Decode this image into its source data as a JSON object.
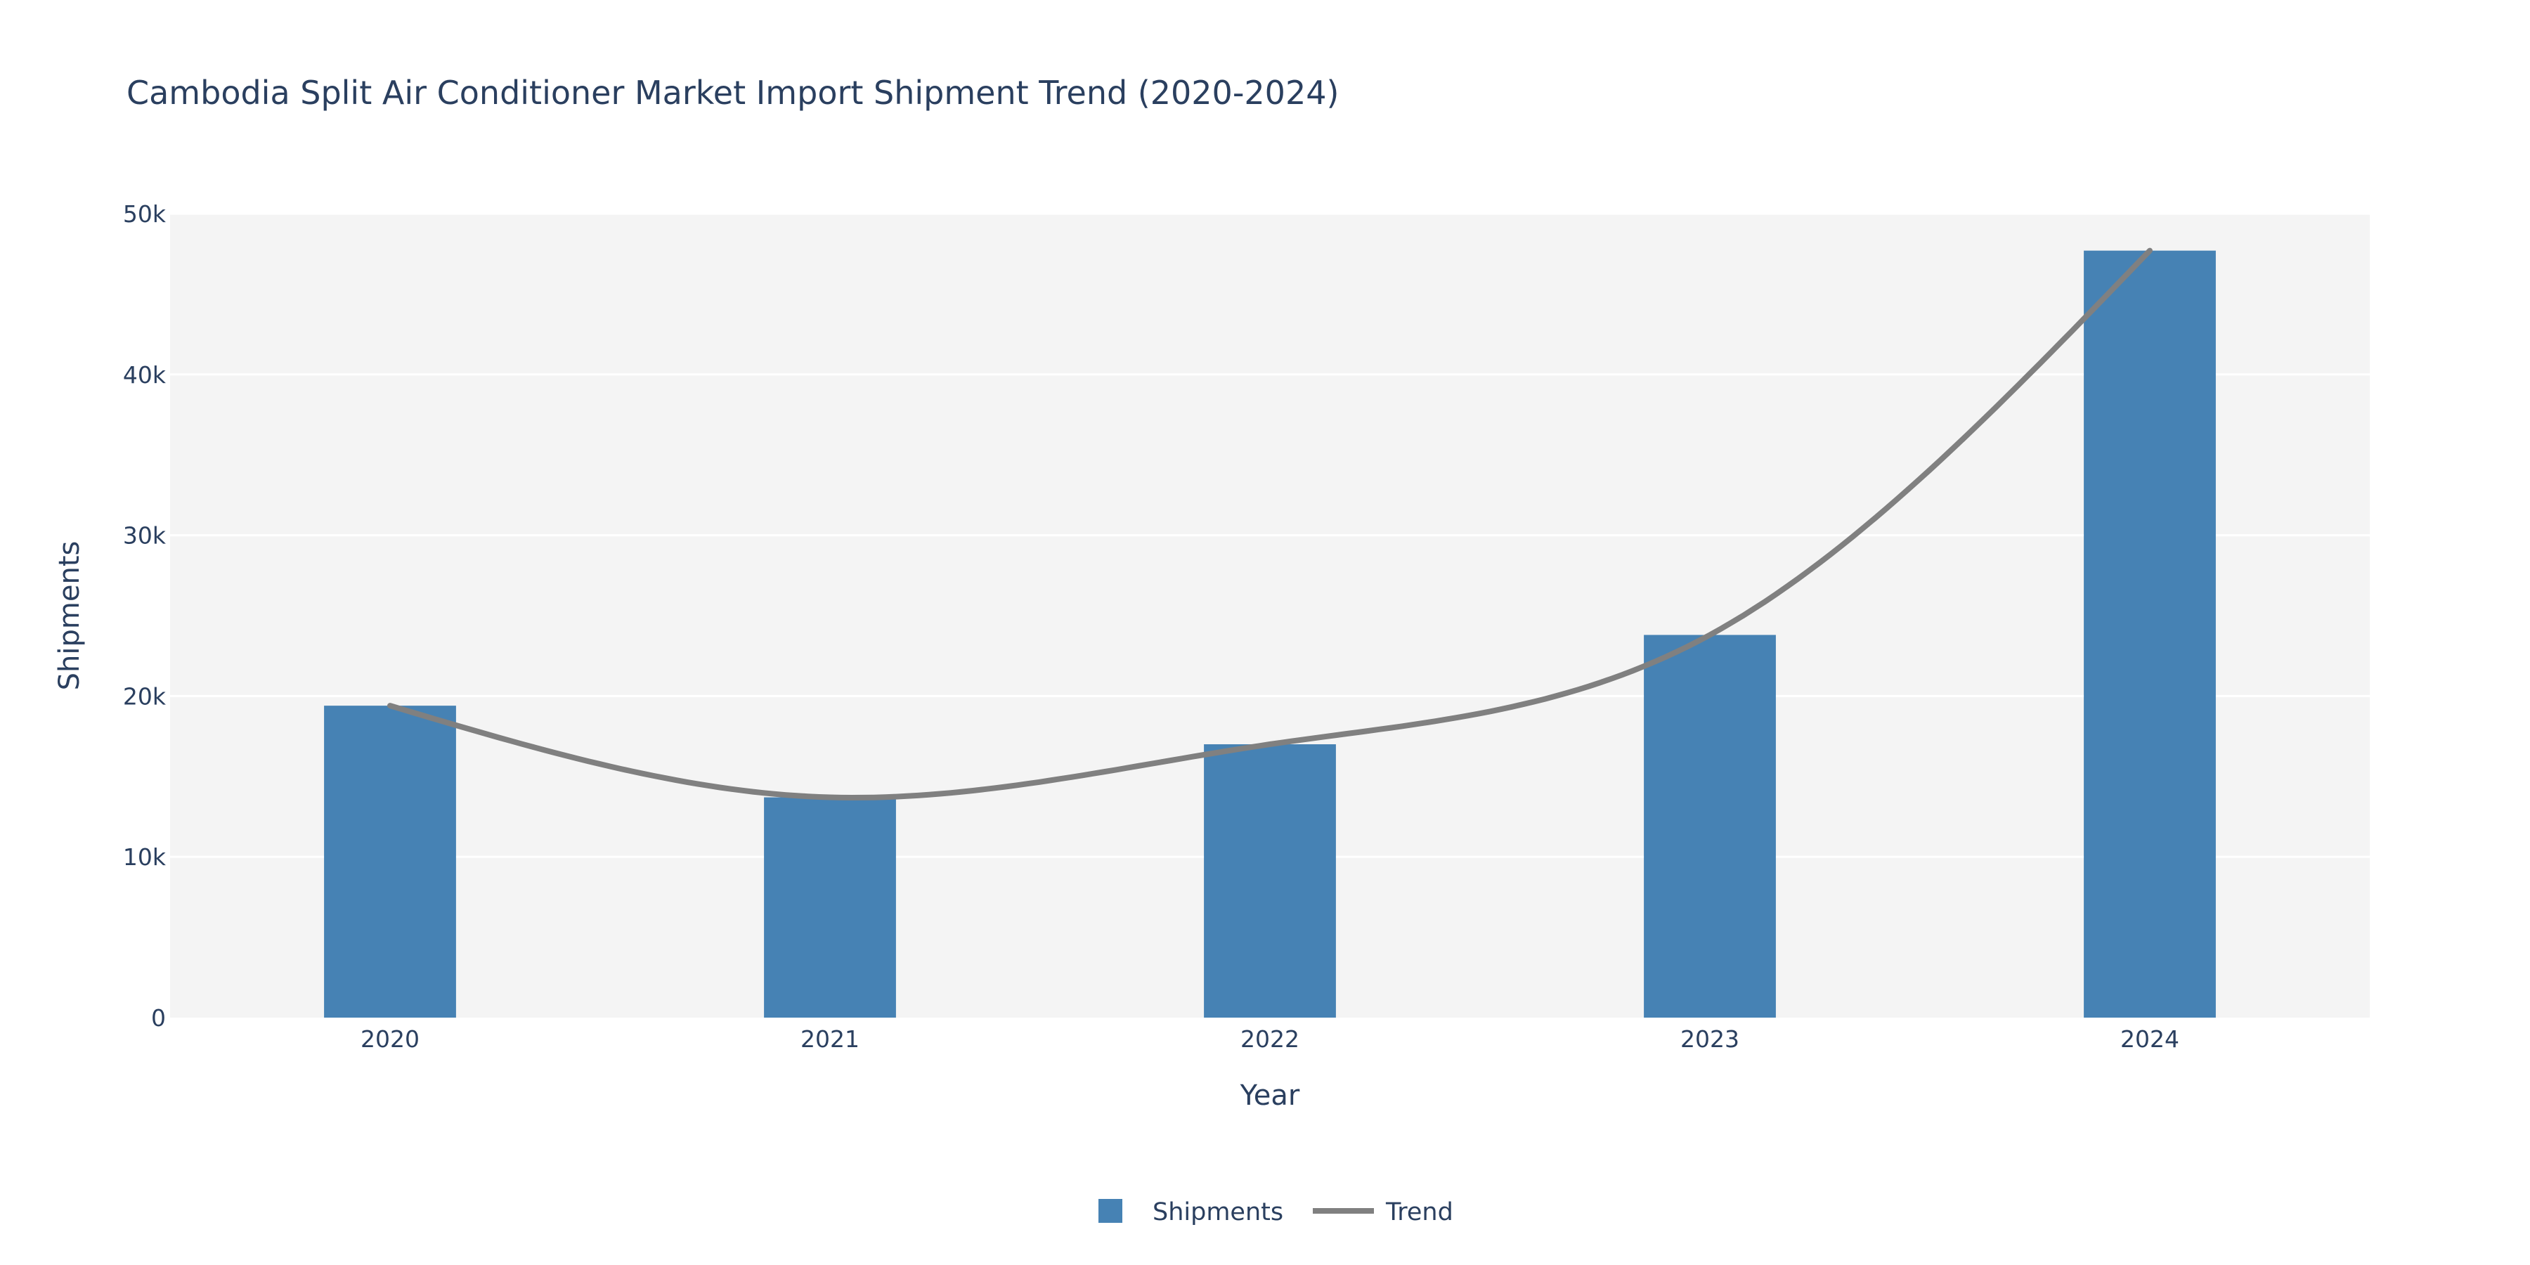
{
  "chart_data": {
    "type": "bar",
    "title": "Cambodia Split Air Conditioner Market Import Shipment Trend (2020-2024)",
    "xlabel": "Year",
    "ylabel": "Shipments",
    "categories": [
      "2020",
      "2021",
      "2022",
      "2023",
      "2024"
    ],
    "series": [
      {
        "name": "Shipments",
        "type": "bar",
        "values": [
          19400,
          13700,
          17000,
          23800,
          47700
        ]
      },
      {
        "name": "Trend",
        "type": "line",
        "smooth": true,
        "values": [
          19400,
          13700,
          17000,
          23800,
          47700
        ]
      }
    ],
    "ylim": [
      0,
      50000
    ],
    "yticks": [
      0,
      10000,
      20000,
      30000,
      40000,
      50000
    ],
    "ytick_labels": [
      "0",
      "10k",
      "20k",
      "30k",
      "40k",
      "50k"
    ],
    "grid": true,
    "legend_position": "bottom-center",
    "colors": {
      "bar": "#4682b4",
      "line": "#808080",
      "plot_bg": "#f4f4f4",
      "grid": "#ffffff",
      "text": "#2a3f5f"
    }
  }
}
